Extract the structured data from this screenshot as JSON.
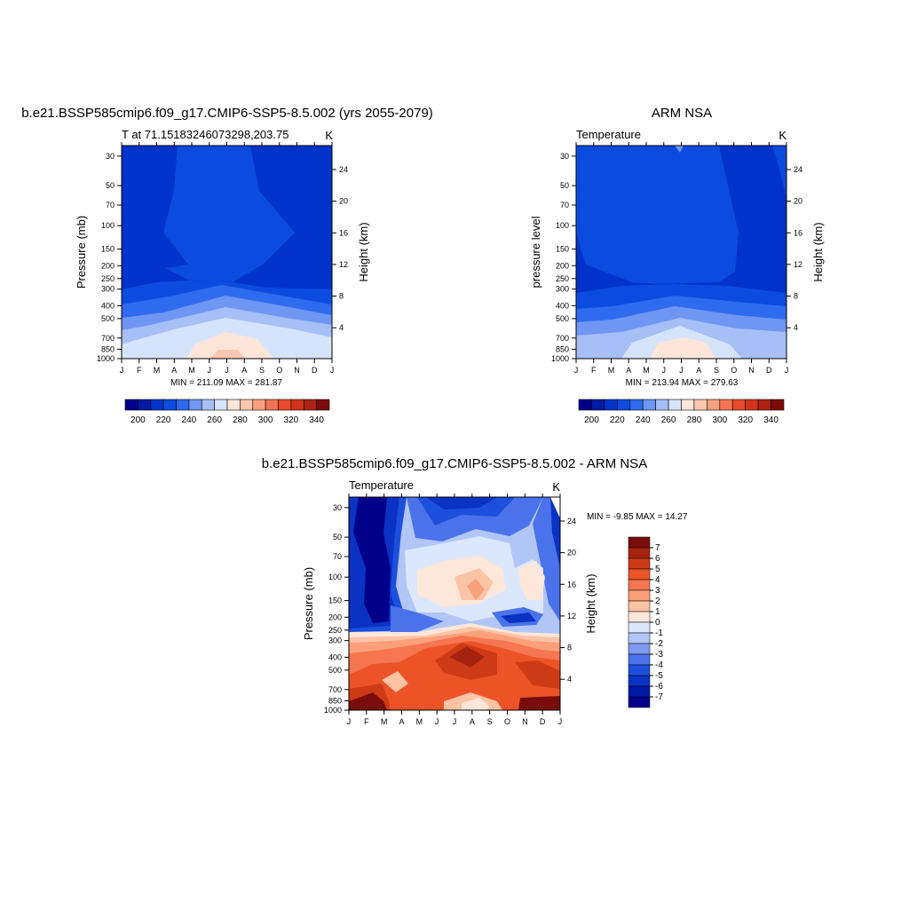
{
  "chart_data": [
    {
      "type": "heatmap",
      "title": "b.e21.BSSP585cmip6.f09_g17.CMIP6-SSP5-8.5.002 (yrs 2055-2079)",
      "subtitle_left": "T at 71.15183246073298,203.75",
      "subtitle_right": "K",
      "ylabel": "Pressure (mb)",
      "y2label": "Height (km)",
      "x": [
        "J",
        "F",
        "M",
        "A",
        "M",
        "J",
        "J",
        "A",
        "S",
        "O",
        "N",
        "D",
        "J"
      ],
      "y_ticks": [
        30,
        50,
        70,
        100,
        150,
        200,
        250,
        300,
        400,
        500,
        700,
        850,
        1000
      ],
      "y2_ticks": [
        24,
        20,
        16,
        12,
        8,
        4
      ],
      "ylim": [
        1000,
        25
      ],
      "y_scale": "log",
      "min_max_label": "MIN = 211.09 MAX = 281.87",
      "z_min": 211.09,
      "z_max": 281.87,
      "colorbar": {
        "orientation": "horizontal",
        "labels": [
          "200",
          "220",
          "240",
          "260",
          "280",
          "300",
          "320",
          "340"
        ]
      }
    },
    {
      "type": "heatmap",
      "title": "ARM NSA",
      "subtitle_left": "Temperature",
      "subtitle_right": "K",
      "ylabel": "pressure level",
      "y2label": "Height (km)",
      "x": [
        "J",
        "F",
        "M",
        "A",
        "M",
        "J",
        "J",
        "A",
        "S",
        "O",
        "N",
        "D",
        "J"
      ],
      "y_ticks": [
        30,
        50,
        70,
        100,
        150,
        200,
        250,
        300,
        400,
        500,
        700,
        850,
        1000
      ],
      "y2_ticks": [
        24,
        20,
        16,
        12,
        8,
        4
      ],
      "ylim": [
        1000,
        25
      ],
      "y_scale": "log",
      "min_max_label": "MIN = 213.94 MAX = 279.63",
      "z_min": 213.94,
      "z_max": 279.63,
      "colorbar": {
        "orientation": "horizontal",
        "labels": [
          "200",
          "220",
          "240",
          "260",
          "280",
          "300",
          "320",
          "340"
        ]
      }
    },
    {
      "type": "heatmap",
      "title": "b.e21.BSSP585cmip6.f09_g17.CMIP6-SSP5-8.5.002 - ARM NSA",
      "subtitle_left": "Temperature",
      "subtitle_right": "K",
      "ylabel": "Pressure (mb)",
      "y2label": "Height (km)",
      "x": [
        "J",
        "F",
        "M",
        "A",
        "M",
        "J",
        "J",
        "A",
        "S",
        "O",
        "N",
        "D",
        "J"
      ],
      "y_ticks": [
        30,
        50,
        70,
        100,
        150,
        200,
        250,
        300,
        400,
        500,
        700,
        850,
        1000
      ],
      "y2_ticks": [
        24,
        20,
        16,
        12,
        8,
        4
      ],
      "ylim": [
        1000,
        25
      ],
      "y_scale": "log",
      "min_max_label": "MIN =  -9.85 MAX =  14.27",
      "z_min": -9.85,
      "z_max": 14.27,
      "colorbar": {
        "orientation": "vertical",
        "labels": [
          "7",
          "6",
          "5",
          "4",
          "3",
          "2",
          "1",
          "0",
          "-1",
          "-2",
          "-3",
          "-4",
          "-5",
          "-6",
          "-7"
        ]
      }
    }
  ],
  "colors": {
    "abs_scale": [
      "#00008b",
      "#001aa3",
      "#0033c9",
      "#0b4be0",
      "#2f6bef",
      "#6f96f2",
      "#a6bff6",
      "#d6e4fb",
      "#fde6d9",
      "#fbc7b0",
      "#f7a07f",
      "#f27452",
      "#e84a2a",
      "#d2331a",
      "#ad2314",
      "#7f0a0a"
    ],
    "diff_scale": [
      "#00008b",
      "#0019a6",
      "#0a33c4",
      "#1d4fdd",
      "#4a72ea",
      "#7e9af0",
      "#b1c6f6",
      "#dbe7fc",
      "#fde7da",
      "#fcc3a5",
      "#f9a07a",
      "#f57651",
      "#ec5428",
      "#cf3a16",
      "#a5230e",
      "#7a0c0c"
    ]
  }
}
